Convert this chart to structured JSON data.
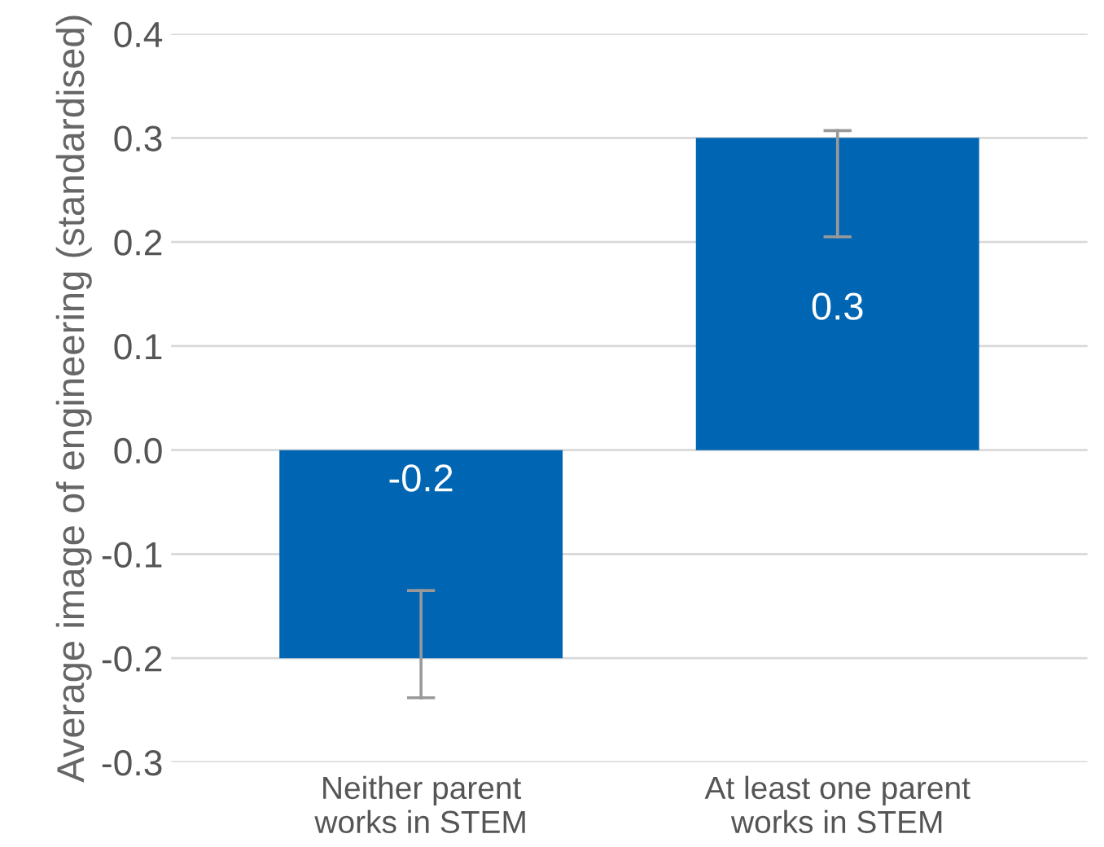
{
  "chart_data": {
    "type": "bar",
    "ylabel": "Average image of engineering (standardised)",
    "categories": [
      "Neither parent\nworks in STEM",
      "At least one parent\nworks in STEM"
    ],
    "values": [
      -0.2,
      0.3
    ],
    "errors": [
      [
        -0.238,
        -0.135
      ],
      [
        0.205,
        0.307
      ]
    ],
    "color": "#0066b3",
    "value_labels": [
      "-0.2",
      "0.3"
    ],
    "ylim": [
      -0.3,
      0.4
    ],
    "yticks": [
      -0.3,
      -0.2,
      -0.1,
      {
        "value": 0,
        "label": "0.0"
      },
      0.1,
      0.2,
      0.3,
      0.4
    ],
    "grid": "y"
  }
}
